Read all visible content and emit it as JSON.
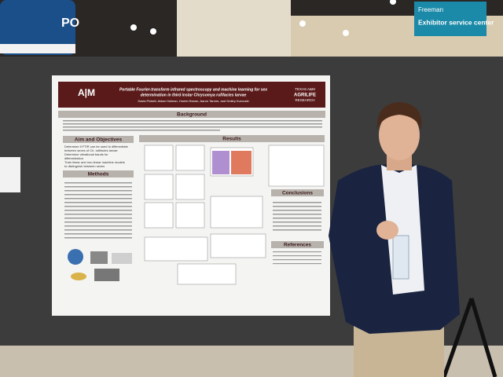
{
  "banner": {
    "text": "PO"
  },
  "sign": {
    "brand": "Freeman",
    "text": "Exhibitor service center"
  },
  "poster": {
    "title_line1": "Portable Fourier-transform infrared spectroscopy and machine learning for sex",
    "title_line2": "determination in third instar Chrysomya rufifacies larvae",
    "authors": "Davis Pickett, Aidan Holman, Hunter Brown, Aaron Tarone, and Dmitry Kurouski",
    "logo_left": "A|M",
    "logo_right_1": "TEXAS A&M",
    "logo_right_2": "AGRILIFE",
    "logo_right_3": "RESEARCH",
    "sections": {
      "background": "Background",
      "aim": "Aim and Objectives",
      "results": "Results",
      "methods": "Methods",
      "conclusions": "Conclusions",
      "references": "References"
    },
    "aim_bullets": [
      "Determine if FTIR can be used to differentiate",
      "between sexes of Ch. rufifacies larvae",
      "Determine vibrational bands for",
      "differentiation",
      "Train linear and non-linear machine models",
      "to distinguish between sexes"
    ]
  }
}
